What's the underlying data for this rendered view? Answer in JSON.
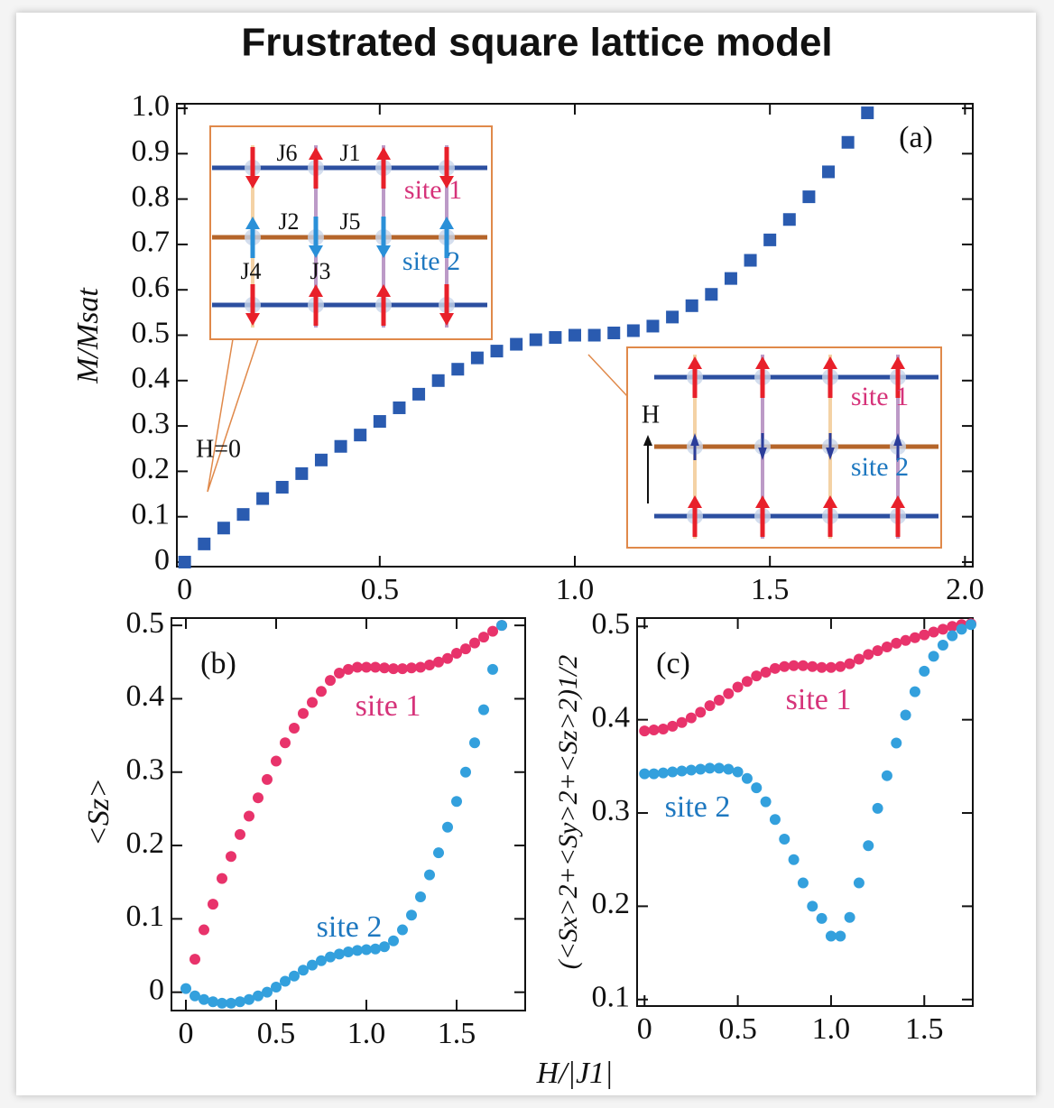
{
  "title": "Frustrated square lattice model",
  "chart_data": [
    {
      "type": "scatter",
      "marker": "square",
      "ylabel": "M/Msat",
      "annotations": [
        "(a)",
        "H=0",
        "J6",
        "J1",
        "site 1",
        "J2",
        "J5",
        "site 2",
        "J4",
        "J3",
        "site 1",
        "H",
        "site 2"
      ],
      "xlim": [
        -0.02,
        2.02
      ],
      "ylim": [
        -0.01,
        1.01
      ],
      "xticks": [
        0,
        0.5,
        {
          "value": 1,
          "label": "1.0"
        },
        1.5,
        {
          "value": 2,
          "label": "2.0"
        }
      ],
      "yticks": [
        0,
        0.1,
        0.2,
        0.3,
        0.4,
        0.5,
        0.6,
        0.7,
        0.8,
        0.9,
        {
          "value": 1,
          "label": "1.0"
        }
      ],
      "series": [
        {
          "color": "#2a5bb0",
          "x": [
            0,
            0.05,
            0.1,
            0.15,
            0.2,
            0.25,
            0.3,
            0.35,
            0.4,
            0.45,
            0.5,
            0.55,
            0.6,
            0.65,
            0.7,
            0.75,
            0.8,
            0.85,
            0.9,
            0.95,
            1.0,
            1.05,
            1.1,
            1.15,
            1.2,
            1.25,
            1.3,
            1.35,
            1.4,
            1.45,
            1.5,
            1.55,
            1.6,
            1.65,
            1.7,
            1.75
          ],
          "values": [
            0,
            0.04,
            0.075,
            0.105,
            0.14,
            0.165,
            0.195,
            0.225,
            0.255,
            0.28,
            0.31,
            0.34,
            0.37,
            0.4,
            0.425,
            0.45,
            0.465,
            0.48,
            0.49,
            0.495,
            0.5,
            0.5,
            0.505,
            0.51,
            0.52,
            0.54,
            0.565,
            0.59,
            0.625,
            0.665,
            0.71,
            0.755,
            0.805,
            0.86,
            0.925,
            0.99
          ]
        }
      ]
    },
    {
      "type": "scatter",
      "marker": "circle",
      "ylabel": "<Sz>",
      "xlabel": "H/|J1|",
      "annotations": [
        "(b)"
      ],
      "xlim": [
        -0.08,
        1.88
      ],
      "ylim": [
        -0.025,
        0.51
      ],
      "xticks": [
        0,
        0.5,
        {
          "value": 1,
          "label": "1.0"
        },
        1.5
      ],
      "yticks": [
        0,
        0.1,
        0.2,
        0.3,
        0.4,
        0.5
      ],
      "series": [
        {
          "name": "site 1",
          "color": "#e8336b",
          "x": [
            0.05,
            0.1,
            0.15,
            0.2,
            0.25,
            0.3,
            0.35,
            0.4,
            0.45,
            0.5,
            0.55,
            0.6,
            0.65,
            0.7,
            0.75,
            0.8,
            0.85,
            0.9,
            0.95,
            1.0,
            1.05,
            1.1,
            1.15,
            1.2,
            1.25,
            1.3,
            1.35,
            1.4,
            1.45,
            1.5,
            1.55,
            1.6,
            1.65,
            1.7,
            1.75
          ],
          "values": [
            0.045,
            0.085,
            0.12,
            0.155,
            0.185,
            0.215,
            0.24,
            0.265,
            0.29,
            0.315,
            0.34,
            0.36,
            0.38,
            0.395,
            0.41,
            0.425,
            0.435,
            0.44,
            0.443,
            0.443,
            0.443,
            0.442,
            0.441,
            0.441,
            0.442,
            0.443,
            0.446,
            0.45,
            0.455,
            0.462,
            0.468,
            0.476,
            0.484,
            0.492,
            0.5
          ]
        },
        {
          "name": "site 2",
          "color": "#33a0dd",
          "x": [
            0,
            0.05,
            0.1,
            0.15,
            0.2,
            0.25,
            0.3,
            0.35,
            0.4,
            0.45,
            0.5,
            0.55,
            0.6,
            0.65,
            0.7,
            0.75,
            0.8,
            0.85,
            0.9,
            0.95,
            1.0,
            1.05,
            1.1,
            1.15,
            1.2,
            1.25,
            1.3,
            1.35,
            1.4,
            1.45,
            1.5,
            1.55,
            1.6,
            1.65,
            1.7,
            1.75
          ],
          "values": [
            0.005,
            -0.005,
            -0.01,
            -0.013,
            -0.015,
            -0.015,
            -0.013,
            -0.01,
            -0.005,
            0,
            0.007,
            0.015,
            0.022,
            0.03,
            0.037,
            0.043,
            0.048,
            0.052,
            0.055,
            0.057,
            0.058,
            0.059,
            0.062,
            0.07,
            0.085,
            0.105,
            0.13,
            0.16,
            0.19,
            0.225,
            0.26,
            0.3,
            0.34,
            0.385,
            0.44,
            0.5
          ]
        }
      ]
    },
    {
      "type": "scatter",
      "marker": "circle",
      "ylabel": "(<Sx>2+<Sy>2+<Sz>2)1/2",
      "annotations": [
        "(c)"
      ],
      "xlim": [
        -0.04,
        1.76
      ],
      "ylim": [
        0.093,
        0.509
      ],
      "xticks": [
        0,
        0.5,
        {
          "value": 1,
          "label": "1.0"
        },
        1.5
      ],
      "yticks": [
        0.1,
        0.2,
        0.3,
        0.4,
        0.5
      ],
      "series": [
        {
          "name": "site 1",
          "color": "#e8336b",
          "x": [
            0,
            0.05,
            0.1,
            0.15,
            0.2,
            0.25,
            0.3,
            0.35,
            0.4,
            0.45,
            0.5,
            0.55,
            0.6,
            0.65,
            0.7,
            0.75,
            0.8,
            0.85,
            0.9,
            0.95,
            1.0,
            1.05,
            1.1,
            1.15,
            1.2,
            1.25,
            1.3,
            1.35,
            1.4,
            1.45,
            1.5,
            1.55,
            1.6,
            1.65,
            1.7,
            1.75
          ],
          "values": [
            0.388,
            0.389,
            0.39,
            0.393,
            0.397,
            0.402,
            0.408,
            0.415,
            0.421,
            0.428,
            0.435,
            0.441,
            0.447,
            0.451,
            0.455,
            0.457,
            0.458,
            0.458,
            0.457,
            0.456,
            0.456,
            0.457,
            0.46,
            0.465,
            0.47,
            0.474,
            0.478,
            0.482,
            0.485,
            0.488,
            0.491,
            0.494,
            0.497,
            0.5,
            0.502,
            0.503
          ]
        },
        {
          "name": "site 2",
          "color": "#33a0dd",
          "x": [
            0,
            0.05,
            0.1,
            0.15,
            0.2,
            0.25,
            0.3,
            0.35,
            0.4,
            0.45,
            0.5,
            0.55,
            0.6,
            0.65,
            0.7,
            0.75,
            0.8,
            0.85,
            0.9,
            0.95,
            1.0,
            1.05,
            1.1,
            1.15,
            1.2,
            1.25,
            1.3,
            1.35,
            1.4,
            1.45,
            1.5,
            1.55,
            1.6,
            1.65,
            1.7,
            1.75
          ],
          "values": [
            0.342,
            0.342,
            0.343,
            0.344,
            0.345,
            0.346,
            0.347,
            0.348,
            0.348,
            0.347,
            0.344,
            0.337,
            0.327,
            0.312,
            0.293,
            0.272,
            0.25,
            0.225,
            0.2,
            0.187,
            0.168,
            0.168,
            0.188,
            0.225,
            0.265,
            0.305,
            0.34,
            0.375,
            0.405,
            0.43,
            0.452,
            0.468,
            0.48,
            0.49,
            0.497,
            0.502
          ]
        }
      ]
    }
  ]
}
